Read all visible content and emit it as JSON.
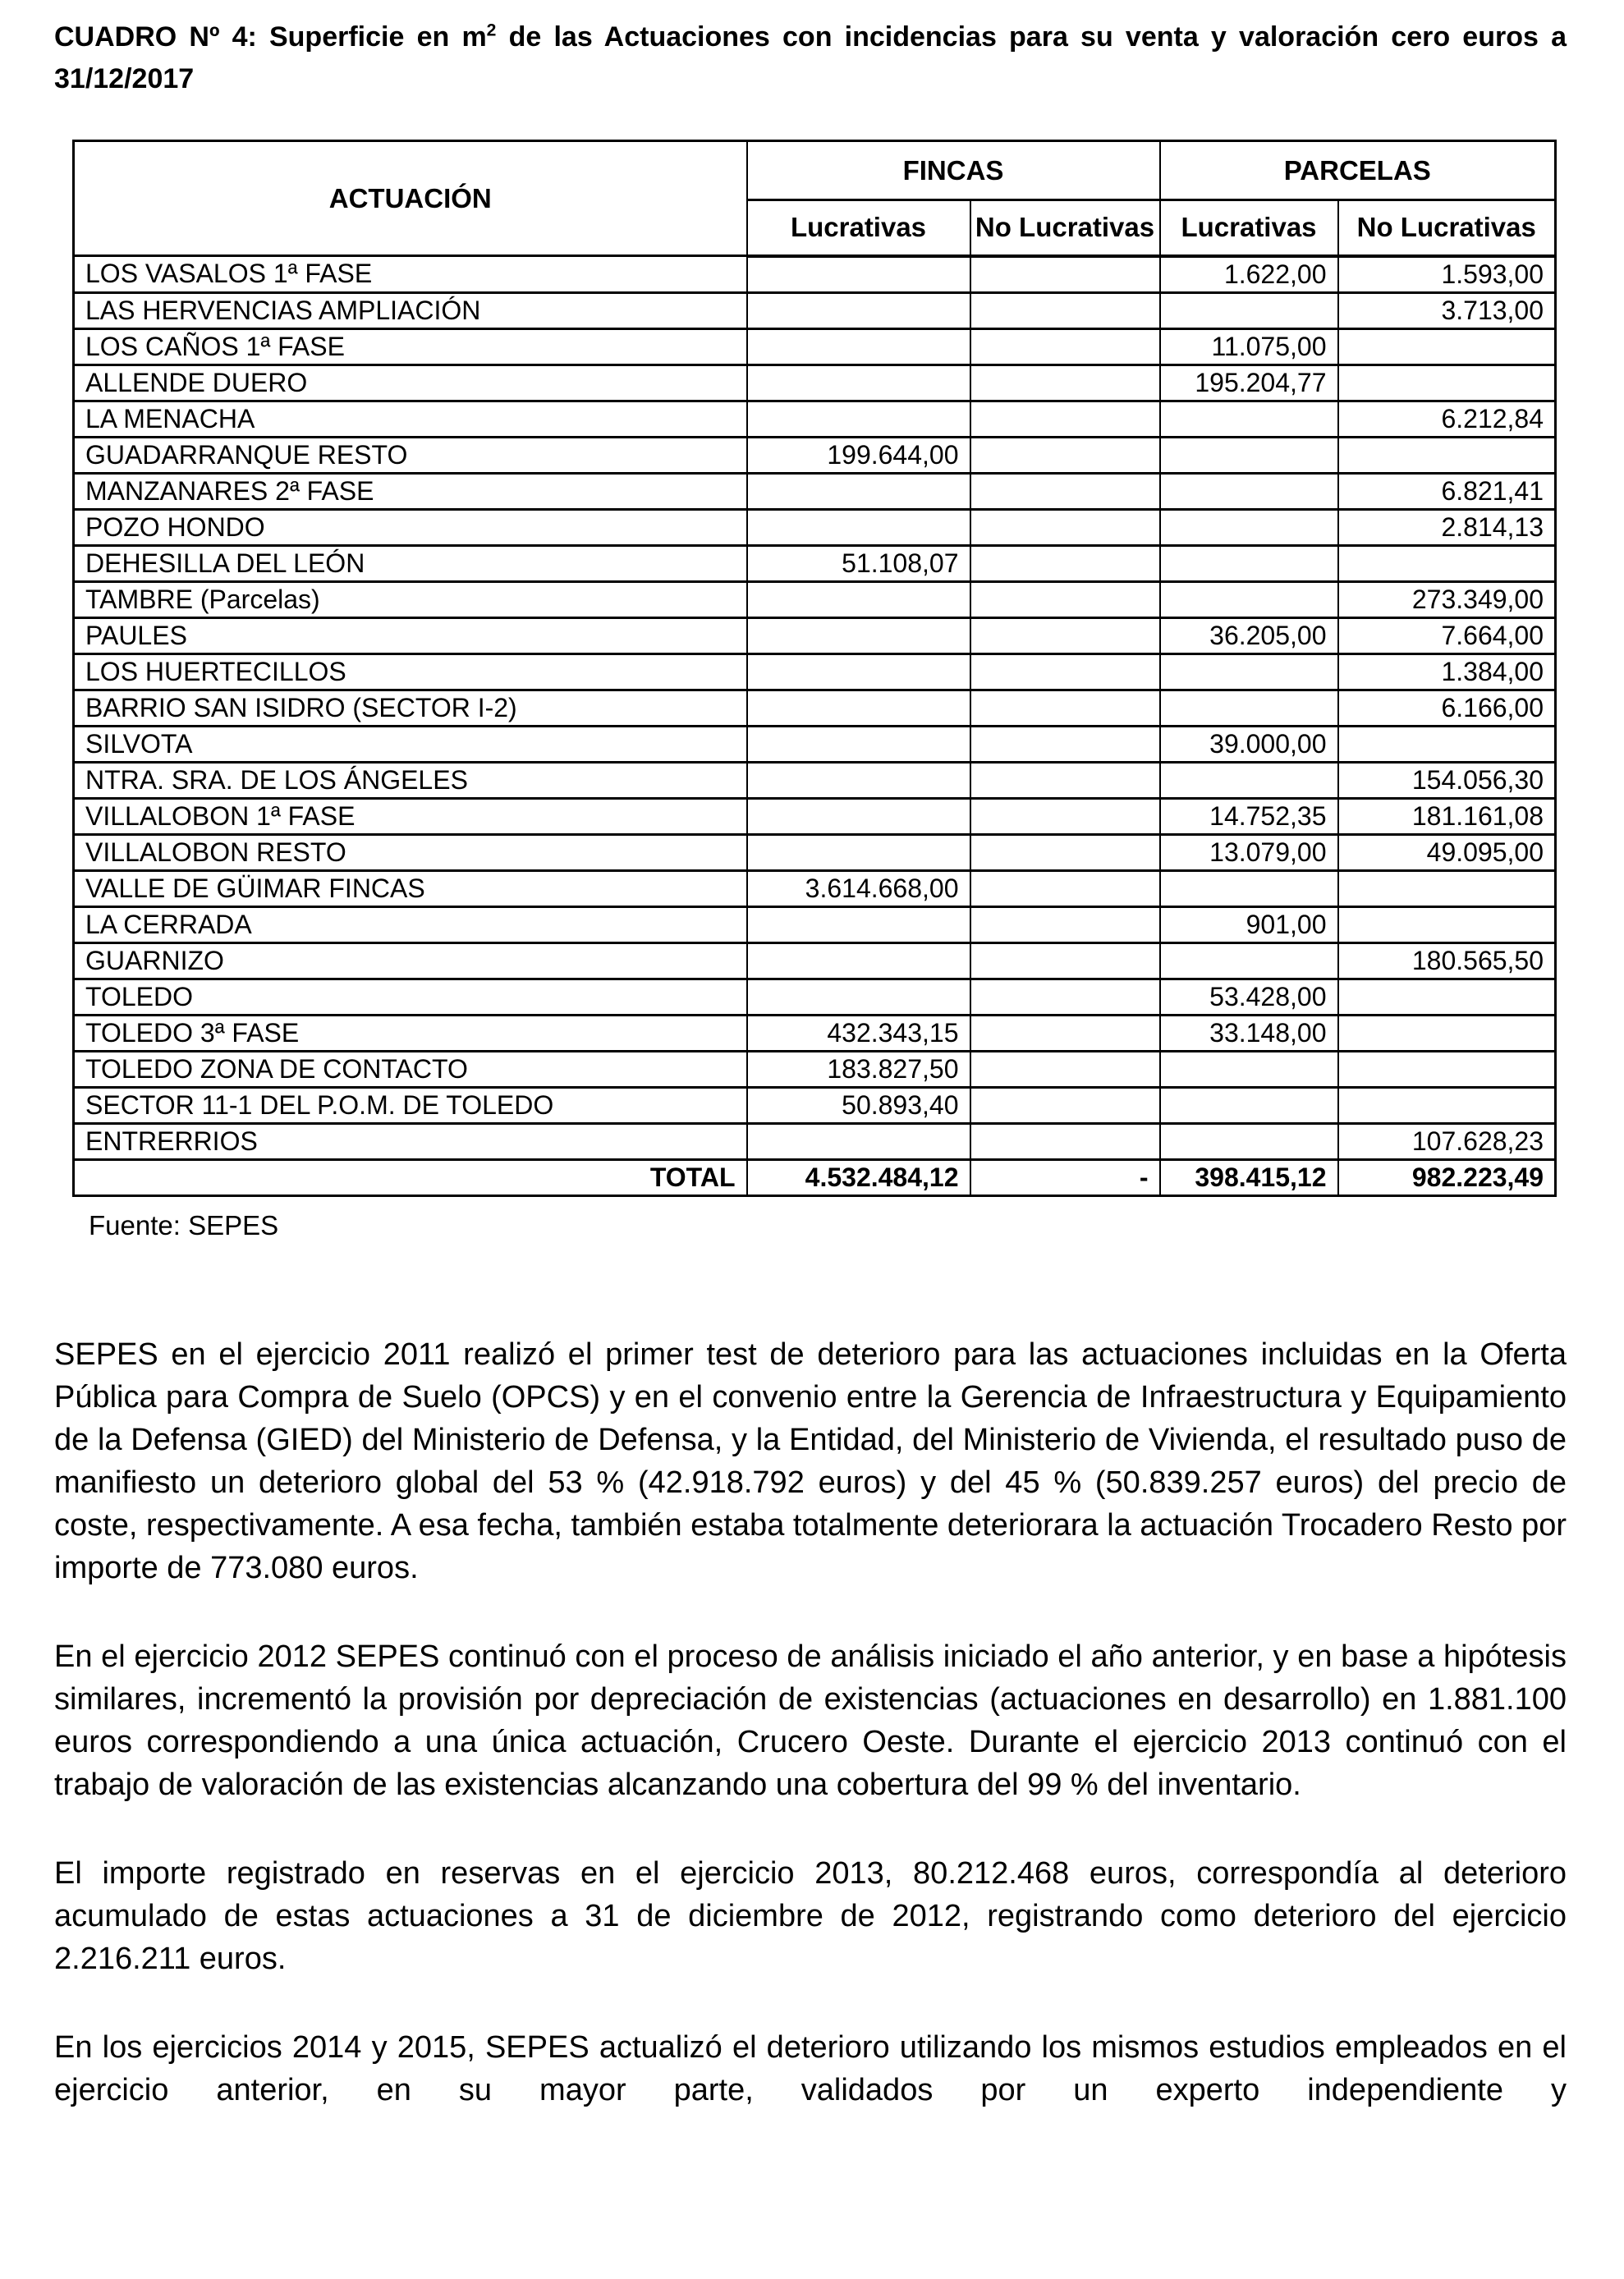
{
  "title": {
    "prefix": "CUADRO Nº 4: Superficie en m",
    "superscript": "2",
    "suffix": " de las Actuaciones con incidencias para su venta y valoración cero euros a 31/12/2017"
  },
  "table": {
    "headers": {
      "actuacion": "ACTUACIÓN",
      "fincas": "FINCAS",
      "parcelas": "PARCELAS",
      "lucrativas": "Lucrativas",
      "no_lucrativas": "No Lucrativas"
    },
    "rows": [
      {
        "name": "LOS VASALOS 1ª FASE",
        "fincas_lucrativas": "",
        "fincas_no_lucrativas": "",
        "parcelas_lucrativas": "1.622,00",
        "parcelas_no_lucrativas": "1.593,00"
      },
      {
        "name": "LAS HERVENCIAS AMPLIACIÓN",
        "fincas_lucrativas": "",
        "fincas_no_lucrativas": "",
        "parcelas_lucrativas": "",
        "parcelas_no_lucrativas": "3.713,00"
      },
      {
        "name": "LOS CAÑOS 1ª FASE",
        "fincas_lucrativas": "",
        "fincas_no_lucrativas": "",
        "parcelas_lucrativas": "11.075,00",
        "parcelas_no_lucrativas": ""
      },
      {
        "name": "ALLENDE DUERO",
        "fincas_lucrativas": "",
        "fincas_no_lucrativas": "",
        "parcelas_lucrativas": "195.204,77",
        "parcelas_no_lucrativas": ""
      },
      {
        "name": "LA MENACHA",
        "fincas_lucrativas": "",
        "fincas_no_lucrativas": "",
        "parcelas_lucrativas": "",
        "parcelas_no_lucrativas": "6.212,84"
      },
      {
        "name": "GUADARRANQUE RESTO",
        "fincas_lucrativas": "199.644,00",
        "fincas_no_lucrativas": "",
        "parcelas_lucrativas": "",
        "parcelas_no_lucrativas": ""
      },
      {
        "name": "MANZANARES 2ª FASE",
        "fincas_lucrativas": "",
        "fincas_no_lucrativas": "",
        "parcelas_lucrativas": "",
        "parcelas_no_lucrativas": "6.821,41"
      },
      {
        "name": "POZO HONDO",
        "fincas_lucrativas": "",
        "fincas_no_lucrativas": "",
        "parcelas_lucrativas": "",
        "parcelas_no_lucrativas": "2.814,13"
      },
      {
        "name": "DEHESILLA DEL LEÓN",
        "fincas_lucrativas": "51.108,07",
        "fincas_no_lucrativas": "",
        "parcelas_lucrativas": "",
        "parcelas_no_lucrativas": ""
      },
      {
        "name": "TAMBRE (Parcelas)",
        "fincas_lucrativas": "",
        "fincas_no_lucrativas": "",
        "parcelas_lucrativas": "",
        "parcelas_no_lucrativas": "273.349,00"
      },
      {
        "name": "PAULES",
        "fincas_lucrativas": "",
        "fincas_no_lucrativas": "",
        "parcelas_lucrativas": "36.205,00",
        "parcelas_no_lucrativas": "7.664,00"
      },
      {
        "name": "LOS HUERTECILLOS",
        "fincas_lucrativas": "",
        "fincas_no_lucrativas": "",
        "parcelas_lucrativas": "",
        "parcelas_no_lucrativas": "1.384,00"
      },
      {
        "name": "BARRIO SAN ISIDRO (SECTOR I-2)",
        "fincas_lucrativas": "",
        "fincas_no_lucrativas": "",
        "parcelas_lucrativas": "",
        "parcelas_no_lucrativas": "6.166,00"
      },
      {
        "name": "SILVOTA",
        "fincas_lucrativas": "",
        "fincas_no_lucrativas": "",
        "parcelas_lucrativas": "39.000,00",
        "parcelas_no_lucrativas": ""
      },
      {
        "name": "NTRA. SRA. DE LOS ÁNGELES",
        "fincas_lucrativas": "",
        "fincas_no_lucrativas": "",
        "parcelas_lucrativas": "",
        "parcelas_no_lucrativas": "154.056,30"
      },
      {
        "name": "VILLALOBON 1ª FASE",
        "fincas_lucrativas": "",
        "fincas_no_lucrativas": "",
        "parcelas_lucrativas": "14.752,35",
        "parcelas_no_lucrativas": "181.161,08"
      },
      {
        "name": "VILLALOBON RESTO",
        "fincas_lucrativas": "",
        "fincas_no_lucrativas": "",
        "parcelas_lucrativas": "13.079,00",
        "parcelas_no_lucrativas": "49.095,00"
      },
      {
        "name": "VALLE DE GÜIMAR FINCAS",
        "fincas_lucrativas": "3.614.668,00",
        "fincas_no_lucrativas": "",
        "parcelas_lucrativas": "",
        "parcelas_no_lucrativas": ""
      },
      {
        "name": "LA CERRADA",
        "fincas_lucrativas": "",
        "fincas_no_lucrativas": "",
        "parcelas_lucrativas": "901,00",
        "parcelas_no_lucrativas": ""
      },
      {
        "name": "GUARNIZO",
        "fincas_lucrativas": "",
        "fincas_no_lucrativas": "",
        "parcelas_lucrativas": "",
        "parcelas_no_lucrativas": "180.565,50"
      },
      {
        "name": "TOLEDO",
        "fincas_lucrativas": "",
        "fincas_no_lucrativas": "",
        "parcelas_lucrativas": "53.428,00",
        "parcelas_no_lucrativas": ""
      },
      {
        "name": "TOLEDO 3ª FASE",
        "fincas_lucrativas": "432.343,15",
        "fincas_no_lucrativas": "",
        "parcelas_lucrativas": "33.148,00",
        "parcelas_no_lucrativas": ""
      },
      {
        "name": "TOLEDO ZONA DE CONTACTO",
        "fincas_lucrativas": "183.827,50",
        "fincas_no_lucrativas": "",
        "parcelas_lucrativas": "",
        "parcelas_no_lucrativas": ""
      },
      {
        "name": "SECTOR 11-1 DEL P.O.M. DE TOLEDO",
        "fincas_lucrativas": "50.893,40",
        "fincas_no_lucrativas": "",
        "parcelas_lucrativas": "",
        "parcelas_no_lucrativas": ""
      },
      {
        "name": "ENTRERRIOS",
        "fincas_lucrativas": "",
        "fincas_no_lucrativas": "",
        "parcelas_lucrativas": "",
        "parcelas_no_lucrativas": "107.628,23"
      }
    ],
    "total": {
      "label": "TOTAL",
      "fincas_lucrativas": "4.532.484,12",
      "fincas_no_lucrativas": "-",
      "parcelas_lucrativas": "398.415,12",
      "parcelas_no_lucrativas": "982.223,49"
    }
  },
  "source": "Fuente: SEPES",
  "paragraphs": [
    "SEPES en el ejercicio 2011 realizó el primer test de deterioro para las actuaciones incluidas en la Oferta Pública para Compra de Suelo (OPCS) y en el convenio entre la Gerencia de Infraestructura y Equipamiento de la Defensa (GIED) del Ministerio de Defensa, y la Entidad, del Ministerio de Vivienda, el resultado puso de manifiesto un deterioro global del 53 % (42.918.792 euros) y del 45 % (50.839.257 euros) del precio de coste, respectivamente. A esa fecha, también estaba totalmente deteriorara la actuación Trocadero Resto por importe de 773.080 euros.",
    "En el ejercicio 2012 SEPES continuó con el proceso de análisis iniciado el año anterior, y en base a hipótesis similares, incrementó la provisión por depreciación de existencias (actuaciones en desarrollo) en 1.881.100 euros correspondiendo a una única actuación, Crucero Oeste. Durante el ejercicio 2013 continuó con el trabajo de valoración de las existencias alcanzando una cobertura del 99 % del inventario.",
    "El importe registrado en reservas en el ejercicio 2013, 80.212.468 euros, correspondía al deterioro acumulado de estas actuaciones a 31 de diciembre de 2012, registrando como deterioro del ejercicio 2.216.211 euros.",
    "En los ejercicios 2014 y 2015, SEPES actualizó el deterioro utilizando los mismos estudios empleados en el ejercicio anterior, en su mayor parte, validados por un experto independiente y"
  ]
}
